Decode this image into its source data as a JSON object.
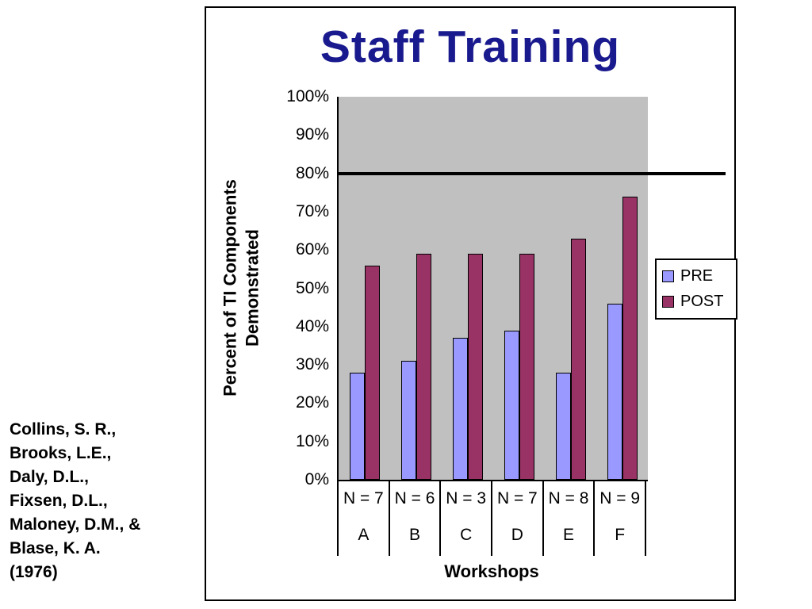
{
  "slide": {
    "title": "Staff Training",
    "citation": "Collins, S. R.,\nBrooks, L.E.,\nDaly, D.L.,\nFixsen, D.L.,\nMaloney, D.M., &\nBlase, K. A.\n(1976)"
  },
  "chart_data": {
    "type": "bar",
    "title": "Staff Training",
    "xlabel": "Workshops",
    "ylabel": "Percent of TI Components\nDemonstrated",
    "ylim": [
      0,
      100
    ],
    "y_ticks": [
      "0%",
      "10%",
      "20%",
      "30%",
      "40%",
      "50%",
      "60%",
      "70%",
      "80%",
      "90%",
      "100%"
    ],
    "categories": [
      "A",
      "B",
      "C",
      "D",
      "E",
      "F"
    ],
    "n_labels": [
      "N = 7",
      "N = 6",
      "N = 3",
      "N = 7",
      "N = 8",
      "N = 9"
    ],
    "series": [
      {
        "name": "PRE",
        "color": "#9999ff",
        "values": [
          28,
          31,
          37,
          39,
          28,
          46
        ]
      },
      {
        "name": "POST",
        "color": "#993366",
        "values": [
          56,
          59,
          59,
          59,
          63,
          74
        ]
      }
    ],
    "reference_line": {
      "value": 80,
      "color": "#000000"
    },
    "plot_bg": "#c0c0c0",
    "legend_position": "right",
    "grid": false,
    "title_color": "#1a1a8f"
  }
}
